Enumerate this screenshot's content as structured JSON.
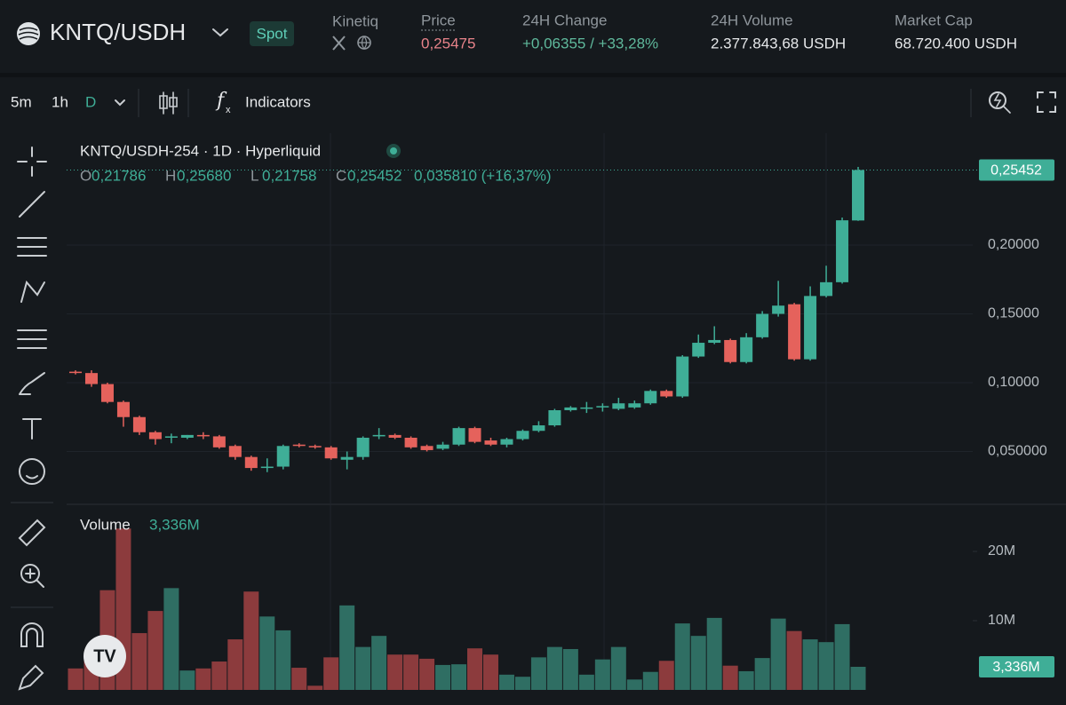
{
  "header": {
    "pair": "KNTQ/USDH",
    "market_type": "Spot",
    "project": "Kinetiq",
    "stats": [
      {
        "label": "Price",
        "value": "0,25475"
      },
      {
        "label": "24H Change",
        "value": "+0,06355 / +33,28%"
      },
      {
        "label": "24H Volume",
        "value": "2.377.843,68 USDH"
      },
      {
        "label": "Market Cap",
        "value": "68.720.400 USDH"
      }
    ]
  },
  "toolbar": {
    "intervals": [
      "5m",
      "1h",
      "D"
    ],
    "indicators": "Indicators"
  },
  "chart_data": [
    {
      "type": "candlestick",
      "title": "KNTQ/USDH-254 · 1D · Hyperliquid",
      "ohlc_legend": [
        {
          "key": "O",
          "value": "0,21786"
        },
        {
          "key": "H",
          "value": "0,25680"
        },
        {
          "key": "L",
          "value": "0,21758"
        },
        {
          "key": "C",
          "value": "0,25452"
        }
      ],
      "change": "0,035810 (+16,37%)",
      "categories": [
        null,
        null,
        null,
        null,
        null,
        null,
        null,
        null,
        null,
        null,
        null,
        null,
        null,
        null,
        null,
        null,
        null,
        null,
        null,
        null,
        null,
        null,
        null,
        null,
        null,
        null,
        null,
        null,
        null,
        null,
        null,
        null,
        null,
        null,
        null,
        null,
        null,
        null,
        null,
        null,
        null,
        null,
        null,
        null,
        null,
        null,
        null,
        null,
        null,
        null
      ],
      "open": [
        0.108,
        0.107,
        0.099,
        0.086,
        0.075,
        0.064,
        0.06,
        0.06,
        0.062,
        0.061,
        0.054,
        0.046,
        0.038,
        0.039,
        0.055,
        0.054,
        0.053,
        0.044,
        0.046,
        0.061,
        0.062,
        0.06,
        0.054,
        0.052,
        0.055,
        0.067,
        0.058,
        0.055,
        0.059,
        0.065,
        0.069,
        0.08,
        0.081,
        0.082,
        0.081,
        0.082,
        0.085,
        0.094,
        0.09,
        0.119,
        0.129,
        0.131,
        0.115,
        0.133,
        0.15,
        0.157,
        0.117,
        0.163,
        0.173,
        0.21786
      ],
      "high": [
        0.109,
        0.109,
        0.1,
        0.087,
        0.076,
        0.065,
        0.063,
        0.062,
        0.064,
        0.062,
        0.055,
        0.047,
        0.045,
        0.055,
        0.056,
        0.055,
        0.054,
        0.05,
        0.061,
        0.067,
        0.063,
        0.061,
        0.055,
        0.057,
        0.068,
        0.068,
        0.06,
        0.06,
        0.066,
        0.072,
        0.081,
        0.083,
        0.086,
        0.085,
        0.089,
        0.087,
        0.095,
        0.095,
        0.12,
        0.135,
        0.141,
        0.132,
        0.136,
        0.152,
        0.174,
        0.158,
        0.17,
        0.185,
        0.22,
        0.2568
      ],
      "low": [
        0.106,
        0.097,
        0.085,
        0.068,
        0.062,
        0.055,
        0.056,
        0.059,
        0.059,
        0.052,
        0.044,
        0.036,
        0.035,
        0.037,
        0.053,
        0.052,
        0.044,
        0.037,
        0.044,
        0.059,
        0.059,
        0.052,
        0.05,
        0.051,
        0.054,
        0.056,
        0.054,
        0.053,
        0.058,
        0.064,
        0.068,
        0.079,
        0.078,
        0.079,
        0.08,
        0.081,
        0.084,
        0.089,
        0.089,
        0.118,
        0.128,
        0.114,
        0.114,
        0.132,
        0.148,
        0.116,
        0.116,
        0.162,
        0.172,
        0.21758
      ],
      "close": [
        0.107,
        0.099,
        0.086,
        0.075,
        0.064,
        0.059,
        0.061,
        0.062,
        0.061,
        0.053,
        0.046,
        0.038,
        0.039,
        0.054,
        0.054,
        0.053,
        0.045,
        0.046,
        0.06,
        0.062,
        0.06,
        0.053,
        0.051,
        0.055,
        0.067,
        0.057,
        0.055,
        0.059,
        0.065,
        0.069,
        0.08,
        0.082,
        0.082,
        0.083,
        0.085,
        0.085,
        0.094,
        0.09,
        0.119,
        0.129,
        0.131,
        0.115,
        0.133,
        0.15,
        0.156,
        0.117,
        0.163,
        0.173,
        0.218,
        0.25452
      ],
      "up_color": "#3fae97",
      "down_color": "#e5625c",
      "ylim": [
        0.0116,
        0.2813
      ],
      "yticks": [
        {
          "value": 0.05,
          "label": "0,050000"
        },
        {
          "value": 0.1,
          "label": "0,10000"
        },
        {
          "value": 0.15,
          "label": "0,15000"
        },
        {
          "value": 0.2,
          "label": "0,20000"
        }
      ],
      "last_label": "0,25452",
      "grid": true
    },
    {
      "type": "bar",
      "title": "Volume",
      "title_value": "3,336M",
      "categories": [
        null,
        null,
        null,
        null,
        null,
        null,
        null,
        null,
        null,
        null,
        null,
        null,
        null,
        null,
        null,
        null,
        null,
        null,
        null,
        null,
        null,
        null,
        null,
        null,
        null,
        null,
        null,
        null,
        null,
        null,
        null,
        null,
        null,
        null,
        null,
        null,
        null,
        null,
        null,
        null,
        null,
        null,
        null,
        null,
        null,
        null,
        null,
        null,
        null,
        null
      ],
      "values": [
        3.1,
        5.4,
        14.4,
        23.3,
        8.2,
        11.4,
        14.7,
        2.8,
        3.1,
        4.1,
        7.3,
        14.2,
        10.6,
        8.6,
        3.2,
        0.6,
        4.7,
        12.2,
        6.2,
        7.8,
        5.1,
        5.1,
        4.5,
        3.6,
        3.7,
        6.0,
        5.1,
        2.2,
        1.9,
        4.7,
        6.2,
        5.9,
        2.2,
        4.4,
        6.2,
        1.5,
        2.6,
        4.2,
        9.6,
        7.8,
        10.4,
        3.5,
        2.7,
        4.6,
        10.3,
        8.5,
        7.3,
        6.9,
        9.5,
        3.336
      ],
      "up_color": "#2f6e63",
      "down_color": "#8c3b3d",
      "ylim": [
        0,
        25.9
      ],
      "yticks": [
        {
          "value": 10,
          "label": "10M"
        },
        {
          "value": 20,
          "label": "20M"
        }
      ],
      "last_label": "3,336M"
    }
  ]
}
